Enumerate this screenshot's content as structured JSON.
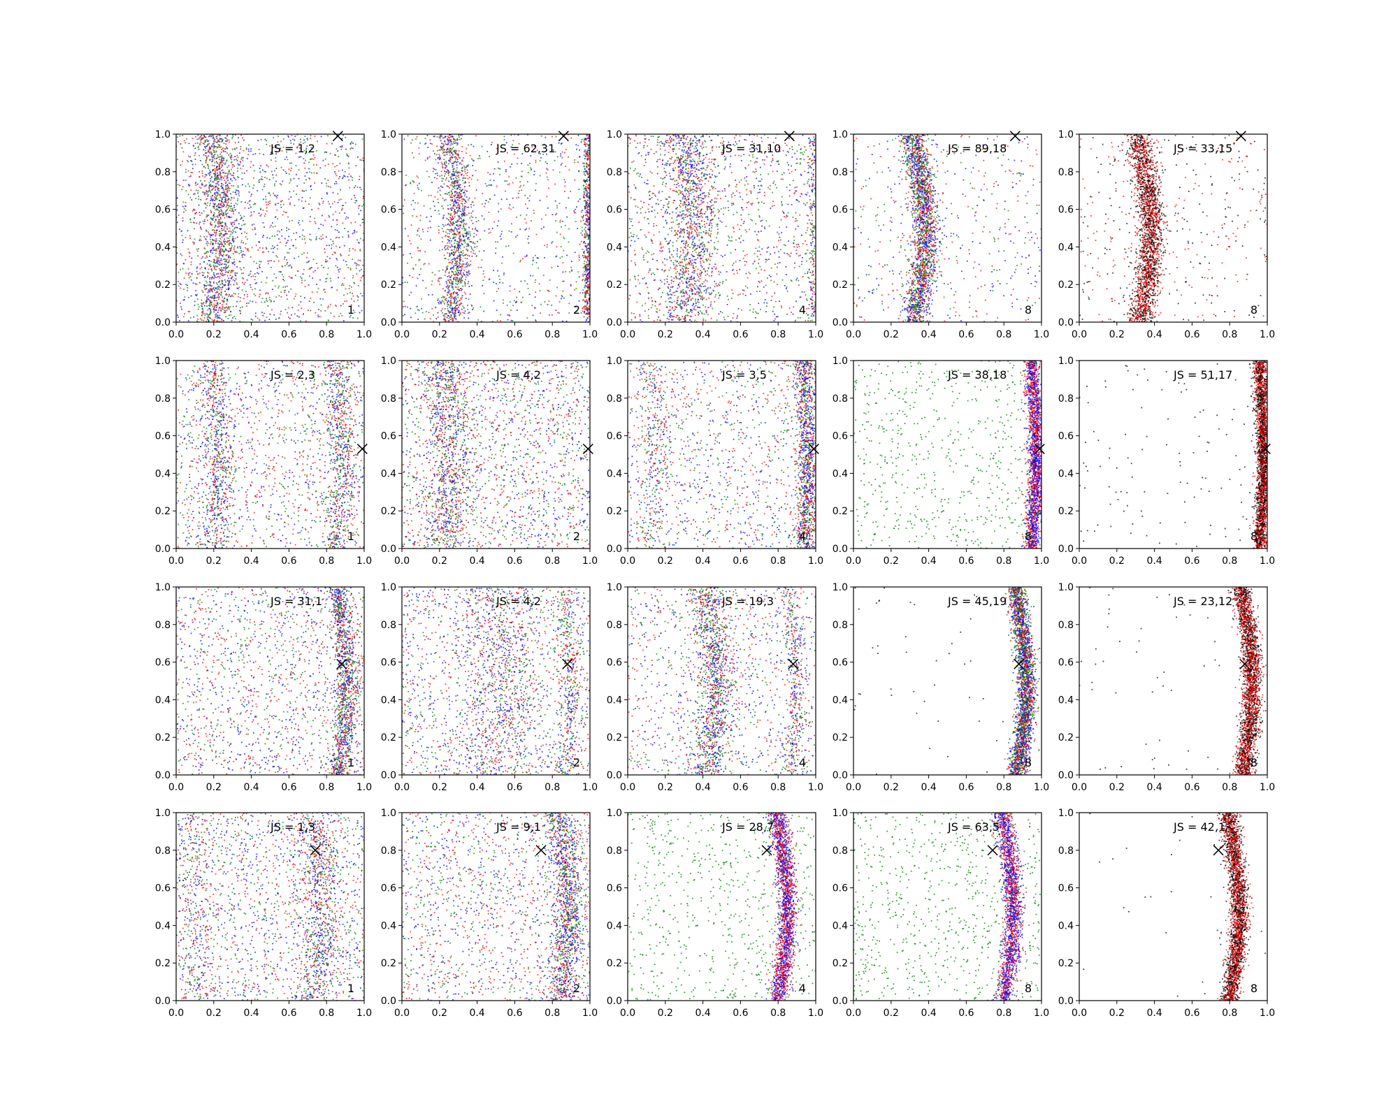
{
  "figure": {
    "rows": 4,
    "cols": 5,
    "axis": {
      "xlim": [
        0,
        1
      ],
      "ylim": [
        0,
        1
      ],
      "xticks": [
        "0.0",
        "0.2",
        "0.4",
        "0.6",
        "0.8",
        "1.0"
      ],
      "yticks": [
        "0.0",
        "0.2",
        "0.4",
        "0.6",
        "0.8",
        "1.0"
      ]
    },
    "colors": {
      "red": "#ff0000",
      "green": "#008000",
      "blue": "#0000ff",
      "black": "#000000"
    }
  },
  "chart_data": [
    {
      "type": "scatter",
      "row": 0,
      "col": 0,
      "js_label": "JS = 1,2",
      "oversampling": "1",
      "marker_x": [
        0.86,
        0.99
      ],
      "bands": [
        {
          "center": 0.2,
          "width": 0.05,
          "amp": 0.04,
          "weight": 0.45
        }
      ],
      "colors": [
        "red",
        "green",
        "blue"
      ],
      "uniform_frac": 0.55,
      "xlim": [
        0,
        1
      ],
      "ylim": [
        0,
        1
      ]
    },
    {
      "type": "scatter",
      "row": 0,
      "col": 1,
      "js_label": "JS = 62,31",
      "oversampling": "2",
      "marker_x": [
        0.86,
        0.99
      ],
      "bands": [
        {
          "center": 0.25,
          "width": 0.04,
          "amp": 0.05,
          "weight": 0.45
        },
        {
          "center": 0.99,
          "width": 0.015,
          "amp": 0.0,
          "weight": 0.25
        }
      ],
      "colors": [
        "red",
        "green",
        "blue"
      ],
      "uniform_frac": 0.3,
      "xlim": [
        0,
        1
      ],
      "ylim": [
        0,
        1
      ]
    },
    {
      "type": "scatter",
      "row": 0,
      "col": 2,
      "js_label": "JS = 31,10",
      "oversampling": "4",
      "marker_x": [
        0.86,
        0.99
      ],
      "bands": [
        {
          "center": 0.3,
          "width": 0.07,
          "amp": 0.05,
          "weight": 0.45
        },
        {
          "center": 0.99,
          "width": 0.02,
          "amp": 0.0,
          "weight": 0.1
        }
      ],
      "colors": [
        "red",
        "green",
        "blue"
      ],
      "uniform_frac": 0.45,
      "xlim": [
        0,
        1
      ],
      "ylim": [
        0,
        1
      ]
    },
    {
      "type": "scatter",
      "row": 0,
      "col": 3,
      "js_label": "JS = 89,18",
      "oversampling": "8",
      "marker_x": [
        0.86,
        0.99
      ],
      "bands": [
        {
          "center": 0.32,
          "width": 0.035,
          "amp": 0.06,
          "weight": 0.8
        }
      ],
      "colors": [
        "red",
        "green",
        "blue"
      ],
      "uniform_frac": 0.2,
      "xlim": [
        0,
        1
      ],
      "ylim": [
        0,
        1
      ]
    },
    {
      "type": "scatter",
      "row": 0,
      "col": 4,
      "js_label": "JS = 33,15",
      "oversampling": "8",
      "marker_x": [
        0.86,
        0.99
      ],
      "bands": [
        {
          "center": 0.32,
          "width": 0.035,
          "amp": 0.06,
          "weight": 0.85
        }
      ],
      "colors": [
        "red",
        "black"
      ],
      "uniform_frac": 0.15,
      "xlim": [
        0,
        1
      ],
      "ylim": [
        0,
        1
      ]
    },
    {
      "type": "scatter",
      "row": 1,
      "col": 0,
      "js_label": "JS = 2,3",
      "oversampling": "1",
      "marker_x": [
        0.99,
        0.53
      ],
      "bands": [
        {
          "center": 0.2,
          "width": 0.04,
          "amp": 0.03,
          "weight": 0.25
        },
        {
          "center": 0.85,
          "width": 0.04,
          "amp": 0.03,
          "weight": 0.25
        }
      ],
      "colors": [
        "red",
        "green",
        "blue"
      ],
      "uniform_frac": 0.5,
      "xlim": [
        0,
        1
      ],
      "ylim": [
        0,
        1
      ]
    },
    {
      "type": "scatter",
      "row": 1,
      "col": 1,
      "js_label": "JS = 4,2",
      "oversampling": "2",
      "marker_x": [
        0.99,
        0.53
      ],
      "bands": [
        {
          "center": 0.22,
          "width": 0.06,
          "amp": 0.04,
          "weight": 0.35
        }
      ],
      "colors": [
        "red",
        "green",
        "blue"
      ],
      "uniform_frac": 0.65,
      "xlim": [
        0,
        1
      ],
      "ylim": [
        0,
        1
      ]
    },
    {
      "type": "scatter",
      "row": 1,
      "col": 2,
      "js_label": "JS = 3,5",
      "oversampling": "4",
      "marker_x": [
        0.99,
        0.53
      ],
      "bands": [
        {
          "center": 0.94,
          "width": 0.03,
          "amp": 0.02,
          "weight": 0.45
        },
        {
          "center": 0.12,
          "width": 0.05,
          "amp": 0.03,
          "weight": 0.1
        }
      ],
      "colors": [
        "red",
        "green",
        "blue"
      ],
      "uniform_frac": 0.45,
      "xlim": [
        0,
        1
      ],
      "ylim": [
        0,
        1
      ]
    },
    {
      "type": "scatter",
      "row": 1,
      "col": 3,
      "js_label": "JS = 38,18",
      "oversampling": "8",
      "marker_x": [
        0.99,
        0.53
      ],
      "bands": [
        {
          "center": 0.95,
          "width": 0.02,
          "amp": 0.02,
          "weight": 0.75
        }
      ],
      "colors": [
        "red",
        "blue"
      ],
      "uniform_frac": 0.25,
      "uniform_color": "green",
      "xlim": [
        0,
        1
      ],
      "ylim": [
        0,
        1
      ]
    },
    {
      "type": "scatter",
      "row": 1,
      "col": 4,
      "js_label": "JS = 51,17",
      "oversampling": "8",
      "marker_x": [
        0.99,
        0.53
      ],
      "bands": [
        {
          "center": 0.96,
          "width": 0.018,
          "amp": 0.02,
          "weight": 0.95
        }
      ],
      "colors": [
        "red",
        "black"
      ],
      "uniform_frac": 0.05,
      "uniform_color": "black",
      "xlim": [
        0,
        1
      ],
      "ylim": [
        0,
        1
      ]
    },
    {
      "type": "scatter",
      "row": 2,
      "col": 0,
      "js_label": "JS = 31,1",
      "oversampling": "1",
      "marker_x": [
        0.88,
        0.59
      ],
      "bands": [
        {
          "center": 0.86,
          "width": 0.03,
          "amp": 0.05,
          "weight": 0.45
        }
      ],
      "colors": [
        "red",
        "green",
        "blue"
      ],
      "uniform_frac": 0.55,
      "xlim": [
        0,
        1
      ],
      "ylim": [
        0,
        1
      ]
    },
    {
      "type": "scatter",
      "row": 2,
      "col": 1,
      "js_label": "JS = 4,2",
      "oversampling": "2",
      "marker_x": [
        0.88,
        0.59
      ],
      "bands": [
        {
          "center": 0.5,
          "width": 0.1,
          "amp": 0.05,
          "weight": 0.3
        },
        {
          "center": 0.86,
          "width": 0.03,
          "amp": 0.04,
          "weight": 0.15
        }
      ],
      "colors": [
        "red",
        "green",
        "blue"
      ],
      "uniform_frac": 0.55,
      "xlim": [
        0,
        1
      ],
      "ylim": [
        0,
        1
      ]
    },
    {
      "type": "scatter",
      "row": 2,
      "col": 2,
      "js_label": "JS = 19,3",
      "oversampling": "4",
      "marker_x": [
        0.88,
        0.59
      ],
      "bands": [
        {
          "center": 0.42,
          "width": 0.05,
          "amp": 0.05,
          "weight": 0.45
        },
        {
          "center": 0.86,
          "width": 0.025,
          "amp": 0.04,
          "weight": 0.15
        }
      ],
      "colors": [
        "red",
        "green",
        "blue"
      ],
      "uniform_frac": 0.4,
      "xlim": [
        0,
        1
      ],
      "ylim": [
        0,
        1
      ]
    },
    {
      "type": "scatter",
      "row": 2,
      "col": 3,
      "js_label": "JS = 45,19",
      "oversampling": "8",
      "marker_x": [
        0.88,
        0.59
      ],
      "bands": [
        {
          "center": 0.87,
          "width": 0.025,
          "amp": 0.05,
          "weight": 0.98
        }
      ],
      "colors": [
        "red",
        "green",
        "blue"
      ],
      "uniform_frac": 0.02,
      "uniform_color": "black",
      "xlim": [
        0,
        1
      ],
      "ylim": [
        0,
        1
      ]
    },
    {
      "type": "scatter",
      "row": 2,
      "col": 4,
      "js_label": "JS = 23,12",
      "oversampling": "8",
      "marker_x": [
        0.88,
        0.59
      ],
      "bands": [
        {
          "center": 0.87,
          "width": 0.025,
          "amp": 0.05,
          "weight": 0.98
        }
      ],
      "colors": [
        "red",
        "black"
      ],
      "uniform_frac": 0.02,
      "uniform_color": "black",
      "xlim": [
        0,
        1
      ],
      "ylim": [
        0,
        1
      ]
    },
    {
      "type": "scatter",
      "row": 3,
      "col": 0,
      "js_label": "JS = 1,3",
      "oversampling": "1",
      "marker_x": [
        0.74,
        0.8
      ],
      "bands": [
        {
          "center": 0.74,
          "width": 0.05,
          "amp": 0.04,
          "weight": 0.3
        },
        {
          "center": 0.08,
          "width": 0.05,
          "amp": 0.03,
          "weight": 0.1
        }
      ],
      "colors": [
        "red",
        "green",
        "blue"
      ],
      "uniform_frac": 0.6,
      "xlim": [
        0,
        1
      ],
      "ylim": [
        0,
        1
      ]
    },
    {
      "type": "scatter",
      "row": 3,
      "col": 1,
      "js_label": "JS = 9,1",
      "oversampling": "2",
      "marker_x": [
        0.74,
        0.8
      ],
      "bands": [
        {
          "center": 0.84,
          "width": 0.04,
          "amp": 0.05,
          "weight": 0.45
        }
      ],
      "colors": [
        "red",
        "green",
        "blue"
      ],
      "uniform_frac": 0.55,
      "xlim": [
        0,
        1
      ],
      "ylim": [
        0,
        1
      ]
    },
    {
      "type": "scatter",
      "row": 3,
      "col": 2,
      "js_label": "JS = 28,7",
      "oversampling": "4",
      "marker_x": [
        0.74,
        0.8
      ],
      "bands": [
        {
          "center": 0.8,
          "width": 0.025,
          "amp": 0.05,
          "weight": 0.75
        }
      ],
      "colors": [
        "red",
        "blue"
      ],
      "uniform_frac": 0.25,
      "uniform_color": "green",
      "xlim": [
        0,
        1
      ],
      "ylim": [
        0,
        1
      ]
    },
    {
      "type": "scatter",
      "row": 3,
      "col": 3,
      "js_label": "JS = 63,5",
      "oversampling": "8",
      "marker_x": [
        0.74,
        0.8
      ],
      "bands": [
        {
          "center": 0.8,
          "width": 0.025,
          "amp": 0.05,
          "weight": 0.72
        }
      ],
      "colors": [
        "red",
        "blue"
      ],
      "uniform_frac": 0.28,
      "uniform_color": "green",
      "xlim": [
        0,
        1
      ],
      "ylim": [
        0,
        1
      ]
    },
    {
      "type": "scatter",
      "row": 3,
      "col": 4,
      "js_label": "JS = 42,1",
      "oversampling": "8",
      "marker_x": [
        0.74,
        0.8
      ],
      "bands": [
        {
          "center": 0.8,
          "width": 0.025,
          "amp": 0.05,
          "weight": 0.99
        }
      ],
      "colors": [
        "red",
        "black"
      ],
      "uniform_frac": 0.01,
      "uniform_color": "black",
      "xlim": [
        0,
        1
      ],
      "ylim": [
        0,
        1
      ]
    }
  ]
}
